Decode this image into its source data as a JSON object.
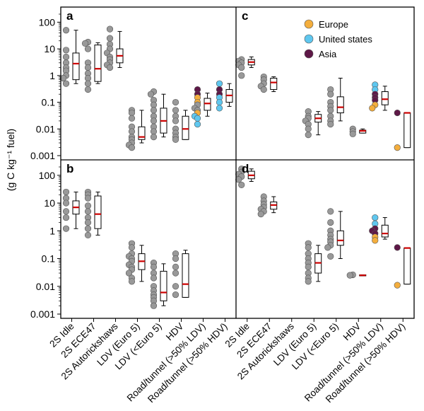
{
  "chart_data": {
    "type": "box-strip",
    "ylabel": "(g C kg⁻¹ fuel)",
    "yscale": "log",
    "ylim": [
      0.001,
      200
    ],
    "yticks": [
      {
        "v": 100,
        "label": "100"
      },
      {
        "v": 10,
        "label": "10"
      },
      {
        "v": 1,
        "label": "1"
      },
      {
        "v": 0.1,
        "label": "0.1"
      },
      {
        "v": 0.01,
        "label": "0.01"
      },
      {
        "v": 0.001,
        "label": "0.001"
      }
    ],
    "colors": {
      "Europe": "#f4ae3d",
      "United states": "#5fc7ef",
      "Asia": "#5e1847",
      "default": "#999999",
      "median": "#cc0000"
    },
    "legend": {
      "location": "panel c, top-right",
      "entries": [
        {
          "name": "Europe",
          "color": "#f4ae3d"
        },
        {
          "name": "United states",
          "color": "#5fc7ef"
        },
        {
          "name": "Asia",
          "color": "#5e1847"
        }
      ]
    },
    "left_categories": [
      "2S Idle",
      "2S ECE47",
      "2S Autorickshaws",
      "LDV (Euro 5)",
      "LDV (<Euro 5)",
      "HDV",
      "Road/tunnel (>50% LDV)",
      "Road/tunnel (>50% HDV)"
    ],
    "right_categories": [
      "2S Idle",
      "2S ECE47",
      "2S Autorickshaws",
      "LDV (Euro 5)",
      "LDV (<Euro 5)",
      "HDV",
      "Road/tunnel (>50% LDV)",
      "Road/tunnel (>50% HDV)"
    ],
    "panels": [
      {
        "label": "a",
        "position": "top-left",
        "groups": [
          {
            "pts": [
              50,
              9,
              5,
              3,
              2,
              1.5,
              1,
              0.8,
              0.5
            ],
            "box": {
              "w1": 0.5,
              "q1": 0.7,
              "med": 2.8,
              "q3": 7,
              "w2": 50
            }
          },
          {
            "pts": [
              18,
              16,
              10,
              3,
              2,
              1.2,
              0.8,
              0.5,
              0.3
            ],
            "box": {
              "w1": 0.5,
              "q1": 0.6,
              "med": 1.8,
              "q3": 14,
              "w2": 17
            }
          },
          {
            "pts": [
              55,
              25,
              15,
              10,
              7,
              5,
              4,
              3,
              2.5,
              2
            ],
            "box": {
              "w1": 2,
              "q1": 3,
              "med": 5.5,
              "q3": 10,
              "w2": 45
            }
          },
          {
            "pts": [
              0.05,
              0.04,
              0.025,
              0.012,
              0.008,
              0.005,
              0.004,
              0.003,
              0.0025,
              0.002
            ],
            "box": {
              "w1": 0.003,
              "q1": 0.004,
              "med": 0.005,
              "q3": 0.012,
              "w2": 0.05
            }
          },
          {
            "pts": [
              0.25,
              0.2,
              0.12,
              0.08,
              0.05,
              0.03,
              0.02,
              0.012,
              0.008,
              0.005
            ],
            "box": {
              "w1": 0.005,
              "q1": 0.007,
              "med": 0.02,
              "q3": 0.06,
              "w2": 0.2
            }
          },
          {
            "pts": [
              0.1,
              0.05,
              0.03,
              0.02,
              0.01,
              0.007,
              0.005,
              0.004
            ],
            "box": {
              "w1": 0.004,
              "q1": 0.004,
              "med": 0.01,
              "q3": 0.03,
              "w2": 0.05
            }
          },
          {
            "pts": [
              {
                "v": 0.3,
                "r": "Asia"
              },
              {
                "v": 0.2,
                "r": "Asia"
              },
              {
                "v": 0.15,
                "r": "Europe"
              },
              {
                "v": 0.1,
                "r": "Europe"
              },
              0.08,
              0.06,
              0.05,
              {
                "v": 0.04,
                "r": "Europe"
              },
              {
                "v": 0.03,
                "r": "United states"
              },
              {
                "v": 0.025,
                "r": "United states"
              },
              {
                "v": 0.015,
                "r": "United states"
              }
            ],
            "box": {
              "w1": 0.03,
              "q1": 0.05,
              "med": 0.09,
              "q3": 0.14,
              "w2": 0.22
            }
          },
          {
            "pts": [
              {
                "v": 0.5,
                "r": "United states"
              },
              {
                "v": 0.3,
                "r": "Asia"
              },
              {
                "v": 0.2,
                "r": "Asia"
              },
              {
                "v": 0.15,
                "r": "United states"
              },
              {
                "v": 0.1,
                "r": "United states"
              },
              {
                "v": 0.06,
                "r": "United states"
              }
            ],
            "box": {
              "w1": 0.07,
              "q1": 0.1,
              "med": 0.18,
              "q3": 0.3,
              "w2": 0.5
            }
          }
        ]
      },
      {
        "label": "b",
        "position": "bottom-left",
        "groups": [
          {
            "pts": [
              25,
              15,
              10,
              5,
              3,
              1.2
            ],
            "box": {
              "w1": 1.2,
              "q1": 4,
              "med": 7,
              "q3": 12,
              "w2": 25
            }
          },
          {
            "pts": [
              25,
              20,
              15,
              8,
              5,
              3,
              2,
              1.2,
              0.7
            ],
            "box": {
              "w1": 0.7,
              "q1": 1.2,
              "med": 4,
              "q3": 18,
              "w2": 25
            }
          },
          {
            "pts": [],
            "box": null
          },
          {
            "pts": [
              0.35,
              0.25,
              0.15,
              0.12,
              0.1,
              0.08,
              0.06,
              0.05,
              0.04,
              0.03,
              0.02,
              0.015
            ],
            "box": {
              "w1": 0.015,
              "q1": 0.04,
              "med": 0.08,
              "q3": 0.15,
              "w2": 0.3
            }
          },
          {
            "pts": [
              0.07,
              0.05,
              0.03,
              0.02,
              0.01,
              0.007,
              0.005,
              0.004,
              0.003,
              0.002
            ],
            "box": {
              "w1": 0.002,
              "q1": 0.003,
              "med": 0.006,
              "q3": 0.035,
              "w2": 0.065
            }
          },
          {
            "pts": [
              0.15,
              0.1,
              0.05,
              0.03,
              0.01,
              0.005
            ],
            "box": {
              "w1": 0.004,
              "q1": 0.004,
              "med": 0.012,
              "q3": 0.15,
              "w2": 0.2
            }
          },
          {
            "pts": [],
            "box": null
          },
          {
            "pts": [],
            "box": null
          }
        ]
      },
      {
        "label": "c",
        "position": "top-right",
        "groups": [
          {
            "pts": [
              4,
              3.5,
              3,
              2.5,
              2,
              1
            ],
            "box": {
              "w1": 2,
              "q1": 2.5,
              "med": 3.2,
              "q3": 4,
              "w2": 5
            }
          },
          {
            "pts": [
              0.9,
              0.7,
              0.5,
              0.4,
              0.3
            ],
            "box": {
              "w1": 0.25,
              "q1": 0.3,
              "med": 0.55,
              "q3": 0.8,
              "w2": 0.9
            }
          },
          {
            "pts": [],
            "box": null
          },
          {
            "pts": [
              0.045,
              0.03,
              0.025,
              0.02,
              0.015,
              0.01,
              0.006
            ],
            "box": {
              "w1": 0.006,
              "q1": 0.018,
              "med": 0.025,
              "q3": 0.035,
              "w2": 0.045
            }
          },
          {
            "pts": [
              0.3,
              0.2,
              0.1,
              0.07,
              0.05,
              0.03,
              0.02,
              0.015
            ],
            "box": {
              "w1": 0.02,
              "q1": 0.04,
              "med": 0.065,
              "q3": 0.16,
              "w2": 0.8
            }
          },
          {
            "pts": [
              0.01,
              0.008,
              0.0065
            ],
            "box": {
              "w1": 0.007,
              "q1": 0.007,
              "med": 0.0085,
              "q3": 0.009,
              "w2": 0.01
            }
          },
          {
            "pts": [
              {
                "v": 0.45,
                "r": "United states"
              },
              {
                "v": 0.3,
                "r": "United states"
              },
              {
                "v": 0.2,
                "r": "Asia"
              },
              {
                "v": 0.15,
                "r": "Asia"
              },
              {
                "v": 0.12,
                "r": "Asia"
              },
              {
                "v": 0.08,
                "r": "Europe"
              },
              {
                "v": 0.06,
                "r": "Europe"
              }
            ],
            "box": {
              "w1": 0.05,
              "q1": 0.08,
              "med": 0.13,
              "q3": 0.25,
              "w2": 0.4
            }
          },
          {
            "pts": [
              {
                "v": 0.04,
                "r": "Asia"
              },
              {
                "v": 0.002,
                "r": "Europe"
              }
            ],
            "box": {
              "w1": 0.002,
              "q1": 0.002,
              "med": 0.04,
              "q3": 0.04,
              "w2": 0.04
            }
          }
        ]
      },
      {
        "label": "d",
        "position": "bottom-right",
        "groups": [
          {
            "pts": [
              170,
              130,
              110,
              90,
              70,
              45
            ],
            "box": {
              "w1": 60,
              "q1": 75,
              "med": 100,
              "q3": 140,
              "w2": 170
            }
          },
          {
            "pts": [
              17,
              12,
              9,
              7,
              6,
              5,
              4
            ],
            "box": {
              "w1": 4.5,
              "q1": 6,
              "med": 8.5,
              "q3": 11,
              "w2": 17
            }
          },
          {
            "pts": [],
            "box": null
          },
          {
            "pts": [
              0.35,
              0.25,
              0.15,
              0.1,
              0.07,
              0.05,
              0.03,
              0.02,
              0.015
            ],
            "box": {
              "w1": 0.015,
              "q1": 0.03,
              "med": 0.07,
              "q3": 0.15,
              "w2": 0.3
            }
          },
          {
            "pts": [
              5,
              2,
              1,
              0.7,
              0.5,
              0.4,
              0.3,
              0.25,
              0.12
            ],
            "box": {
              "w1": 0.1,
              "q1": 0.3,
              "med": 0.45,
              "q3": 1,
              "w2": 5
            }
          },
          {
            "pts": [
              0.026,
              0.025
            ],
            "box": {
              "w1": 0.025,
              "q1": 0.025,
              "med": 0.025,
              "q3": 0.026,
              "w2": 0.026
            }
          },
          {
            "pts": [
              {
                "v": 3,
                "r": "United states"
              },
              {
                "v": 1.8,
                "r": "United states"
              },
              {
                "v": 1.2,
                "r": "Asia"
              },
              {
                "v": 1,
                "r": "Asia"
              },
              {
                "v": 0.8,
                "r": "Asia"
              },
              {
                "v": 0.6,
                "r": "Europe"
              },
              {
                "v": 0.45,
                "r": "Europe"
              }
            ],
            "box": {
              "w1": 0.5,
              "q1": 0.6,
              "med": 0.8,
              "q3": 1.6,
              "w2": 3
            }
          },
          {
            "pts": [
              {
                "v": 0.25,
                "r": "Asia"
              },
              {
                "v": 0.011,
                "r": "Europe"
              }
            ],
            "box": {
              "w1": 0.012,
              "q1": 0.012,
              "med": 0.24,
              "q3": 0.24,
              "w2": 0.24
            }
          }
        ]
      }
    ]
  }
}
